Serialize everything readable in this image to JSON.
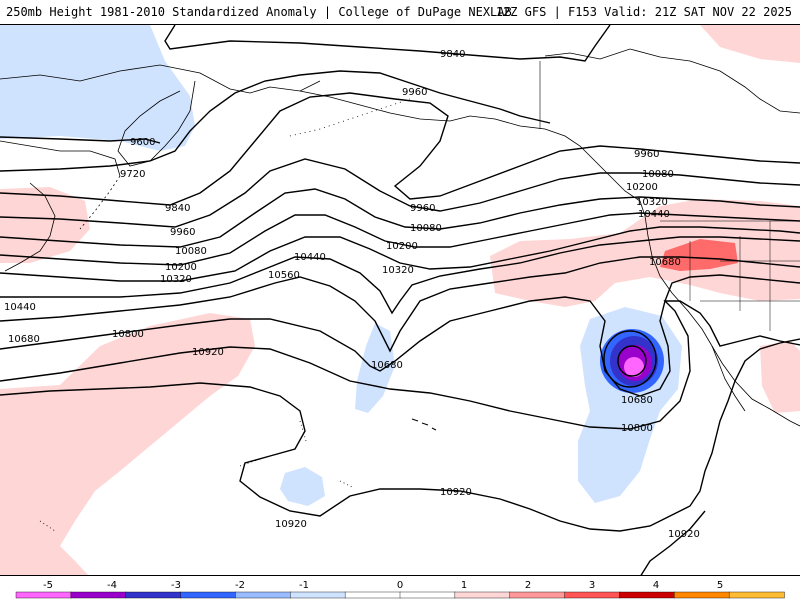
{
  "header": {
    "left": "250mb Height 1981-2010 Standardized Anomaly | College of DuPage NEXLAB",
    "right": "12Z GFS | F153 Valid: 21Z SAT NOV 22 2025"
  },
  "contour_labels": [
    "9840",
    "9600",
    "9960",
    "9720",
    "9840",
    "9960",
    "10080",
    "10200",
    "10320",
    "10440",
    "10680",
    "10440",
    "10560",
    "10800",
    "10920",
    "9960",
    "10080",
    "10200",
    "10320",
    "9960",
    "10080",
    "10200",
    "10320",
    "10440",
    "10680",
    "10680",
    "10680",
    "10800",
    "10920",
    "10920",
    "10920"
  ],
  "colorbar": {
    "ticks": [
      "-5",
      "-4",
      "-3",
      "-2",
      "-1",
      "0",
      "1",
      "2",
      "3",
      "4",
      "5"
    ],
    "colors": [
      "#ff66ff",
      "#9900cc",
      "#3333cc",
      "#3366ff",
      "#99bbff",
      "#cfe3ff",
      "#ffffff",
      "#ffffff",
      "#ffd6d6",
      "#ff9999",
      "#ff5555",
      "#cc0000",
      "#ff8800",
      "#ffbb33"
    ]
  }
}
